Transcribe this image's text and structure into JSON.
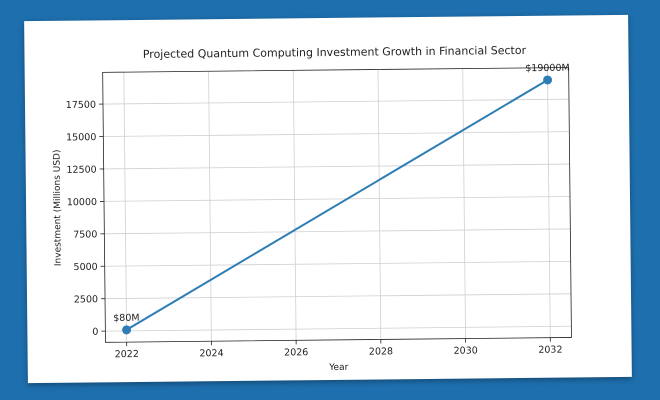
{
  "chart_data": {
    "type": "line",
    "title": "Projected Quantum Computing Investment Growth in Financial Sector",
    "xlabel": "Year",
    "ylabel": "Investment (Millions USD)",
    "x": [
      2022,
      2032
    ],
    "series": [
      {
        "values": [
          80,
          19000
        ],
        "color": "#2e7db5"
      }
    ],
    "annotations": [
      {
        "x": 2022,
        "y": 80,
        "text": "$80M"
      },
      {
        "x": 2032,
        "y": 19000,
        "text": "$19000M"
      }
    ],
    "xlim": [
      2021.5,
      2032.5
    ],
    "ylim": [
      -865,
      19945
    ],
    "xticks": [
      2022,
      2024,
      2026,
      2028,
      2030,
      2032
    ],
    "yticks": [
      0,
      2500,
      5000,
      7500,
      10000,
      12500,
      15000,
      17500
    ],
    "grid": true
  }
}
